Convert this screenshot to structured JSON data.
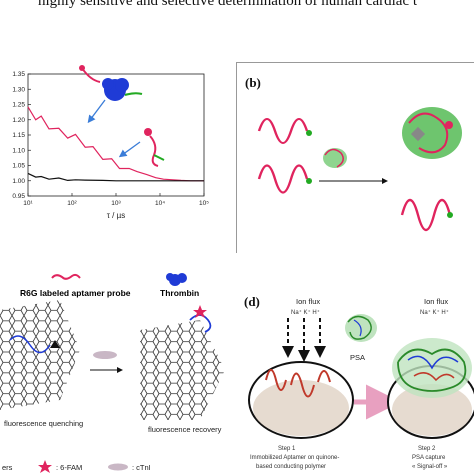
{
  "header": {
    "text": "highly sensitive and selective determination of human cardiac t"
  },
  "panel_b": {
    "label": "(b)"
  },
  "panel_d": {
    "label": "(d)",
    "ion_flux_label": "Ion flux",
    "ions_label": "Na⁺ K⁺ H⁺",
    "psa_label": "PSA",
    "step1_title": "Step 1",
    "step1_line1": "Immobilized Aptamer on quinone-",
    "step1_line2": "based conducting polymer",
    "step2_title": "Step 2",
    "step2_line1": "PSA capture",
    "step2_line2": "« Signal-off »"
  },
  "panel_a_legend": {
    "probe_label": "R6G labeled aptamer probe",
    "thrombin_label": "Thrombin"
  },
  "panel_c": {
    "quenching_label": "fluorescence quenching",
    "recovery_label": "fluorescence recovery",
    "legend_prefix": "ers",
    "fam_label": ": 6-FAM",
    "ctni_label": ": cTnI"
  },
  "chart_data": {
    "type": "line",
    "xlabel": "τ / µs",
    "ylabel": "",
    "xscale": "log",
    "xlim": [
      10,
      100000
    ],
    "ylim": [
      0.95,
      1.35
    ],
    "x_ticks": [
      "10¹",
      "10²",
      "10³",
      "10⁴",
      "10⁵"
    ],
    "y_ticks": [
      "0.95",
      "1.00",
      "1.05",
      "1.10",
      "1.15",
      "1.20",
      "1.25",
      "1.30",
      "1.35"
    ],
    "series": [
      {
        "color": "#e0245e",
        "x": [
          10,
          15,
          20,
          30,
          50,
          80,
          120,
          200,
          300,
          500,
          800,
          1200,
          2000,
          3000,
          5000,
          8000,
          12000,
          20000,
          30000,
          50000,
          100000
        ],
        "y": [
          1.23,
          1.21,
          1.2,
          1.18,
          1.16,
          1.15,
          1.14,
          1.12,
          1.1,
          1.08,
          1.06,
          1.05,
          1.04,
          1.03,
          1.02,
          1.01,
          1.005,
          1.003,
          1.001,
          1.0,
          1.0
        ]
      },
      {
        "color": "#111111",
        "x": [
          10,
          15,
          20,
          30,
          50,
          80,
          120,
          200,
          500,
          1000,
          5000,
          20000,
          100000
        ],
        "y": [
          1.02,
          1.015,
          1.01,
          1.008,
          1.005,
          1.004,
          1.003,
          1.002,
          1.001,
          1.0,
          1.0,
          1.0,
          1.0
        ]
      }
    ]
  }
}
